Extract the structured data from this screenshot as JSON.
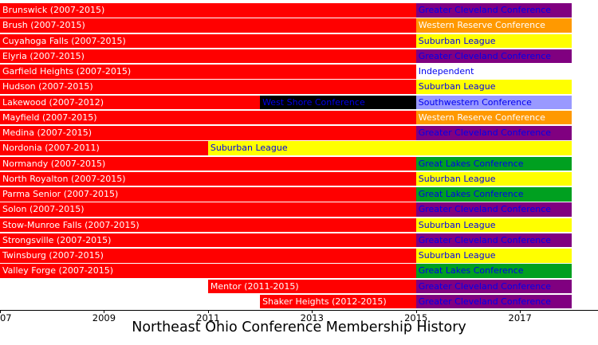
{
  "chart_data": {
    "type": "timeline",
    "title": "Northeast Ohio Conference Membership History",
    "x_axis": {
      "min": 2007,
      "max": 2018.5,
      "ticks": [
        2007,
        2009,
        2011,
        2013,
        2015,
        2017
      ],
      "tick_labels": [
        "2007",
        "2009",
        "2011",
        "2013",
        "2015",
        "2017"
      ]
    },
    "legend_position": "none",
    "grid": false,
    "colors": {
      "noc_red": "#ff0000",
      "gcc_purple": "#800080",
      "wrc_orange": "#ff9900",
      "suburban_yellow": "#ffff00",
      "independent_white": "#ffffff",
      "wsc_black": "#000000",
      "swc_lavender": "#9999ff",
      "glc_green": "#00a020",
      "school_text": "#ffffff",
      "conference_text": "#0000ee"
    },
    "rows": [
      {
        "school": "Brunswick",
        "segments": [
          {
            "label": "Brunswick (2007-2015)",
            "start": 2007,
            "end": 2015,
            "fill": "noc_red",
            "text": "school_text"
          },
          {
            "label": "Greater Cleveland Conference",
            "start": 2015,
            "end": 2018,
            "fill": "gcc_purple",
            "text": "conference_text"
          }
        ]
      },
      {
        "school": "Brush",
        "segments": [
          {
            "label": "Brush (2007-2015)",
            "start": 2007,
            "end": 2015,
            "fill": "noc_red",
            "text": "school_text"
          },
          {
            "label": "Western Reserve Conference",
            "start": 2015,
            "end": 2018,
            "fill": "wrc_orange",
            "text": "school_text"
          }
        ]
      },
      {
        "school": "Cuyahoga Falls",
        "segments": [
          {
            "label": "Cuyahoga Falls (2007-2015)",
            "start": 2007,
            "end": 2015,
            "fill": "noc_red",
            "text": "school_text"
          },
          {
            "label": "Suburban League",
            "start": 2015,
            "end": 2018,
            "fill": "suburban_yellow",
            "text": "conference_text"
          }
        ]
      },
      {
        "school": "Elyria",
        "segments": [
          {
            "label": "Elyria (2007-2015)",
            "start": 2007,
            "end": 2015,
            "fill": "noc_red",
            "text": "school_text"
          },
          {
            "label": "Greater Cleveland Conference",
            "start": 2015,
            "end": 2018,
            "fill": "gcc_purple",
            "text": "conference_text"
          }
        ]
      },
      {
        "school": "Garfield Heights",
        "segments": [
          {
            "label": "Garfield Heights (2007-2015)",
            "start": 2007,
            "end": 2015,
            "fill": "noc_red",
            "text": "school_text"
          },
          {
            "label": "Independent",
            "start": 2015,
            "end": 2018,
            "fill": "independent_white",
            "text": "conference_text"
          }
        ]
      },
      {
        "school": "Hudson",
        "segments": [
          {
            "label": "Hudson (2007-2015)",
            "start": 2007,
            "end": 2015,
            "fill": "noc_red",
            "text": "school_text"
          },
          {
            "label": "Suburban League",
            "start": 2015,
            "end": 2018,
            "fill": "suburban_yellow",
            "text": "conference_text"
          }
        ]
      },
      {
        "school": "Lakewood",
        "segments": [
          {
            "label": "Lakewood (2007-2012)",
            "start": 2007,
            "end": 2012,
            "fill": "noc_red",
            "text": "school_text"
          },
          {
            "label": "West Shore Conference",
            "start": 2012,
            "end": 2015,
            "fill": "wsc_black",
            "text": "conference_text"
          },
          {
            "label": "Southwestern Conference",
            "start": 2015,
            "end": 2018,
            "fill": "swc_lavender",
            "text": "conference_text"
          }
        ]
      },
      {
        "school": "Mayfield",
        "segments": [
          {
            "label": "Mayfield (2007-2015)",
            "start": 2007,
            "end": 2015,
            "fill": "noc_red",
            "text": "school_text"
          },
          {
            "label": "Western Reserve Conference",
            "start": 2015,
            "end": 2018,
            "fill": "wrc_orange",
            "text": "school_text"
          }
        ]
      },
      {
        "school": "Medina",
        "segments": [
          {
            "label": "Medina (2007-2015)",
            "start": 2007,
            "end": 2015,
            "fill": "noc_red",
            "text": "school_text"
          },
          {
            "label": "Greater Cleveland Conference",
            "start": 2015,
            "end": 2018,
            "fill": "gcc_purple",
            "text": "conference_text"
          }
        ]
      },
      {
        "school": "Nordonia",
        "segments": [
          {
            "label": "Nordonia (2007-2011)",
            "start": 2007,
            "end": 2011,
            "fill": "noc_red",
            "text": "school_text"
          },
          {
            "label": "Suburban League",
            "start": 2011,
            "end": 2018,
            "fill": "suburban_yellow",
            "text": "conference_text"
          }
        ]
      },
      {
        "school": "Normandy",
        "segments": [
          {
            "label": "Normandy (2007-2015)",
            "start": 2007,
            "end": 2015,
            "fill": "noc_red",
            "text": "school_text"
          },
          {
            "label": "Great Lakes Conference",
            "start": 2015,
            "end": 2018,
            "fill": "glc_green",
            "text": "conference_text"
          }
        ]
      },
      {
        "school": "North Royalton",
        "segments": [
          {
            "label": "North Royalton (2007-2015)",
            "start": 2007,
            "end": 2015,
            "fill": "noc_red",
            "text": "school_text"
          },
          {
            "label": "Suburban League",
            "start": 2015,
            "end": 2018,
            "fill": "suburban_yellow",
            "text": "conference_text"
          }
        ]
      },
      {
        "school": "Parma Senior",
        "segments": [
          {
            "label": "Parma Senior (2007-2015)",
            "start": 2007,
            "end": 2015,
            "fill": "noc_red",
            "text": "school_text"
          },
          {
            "label": "Great Lakes Conference",
            "start": 2015,
            "end": 2018,
            "fill": "glc_green",
            "text": "conference_text"
          }
        ]
      },
      {
        "school": "Solon",
        "segments": [
          {
            "label": "Solon (2007-2015)",
            "start": 2007,
            "end": 2015,
            "fill": "noc_red",
            "text": "school_text"
          },
          {
            "label": "Greater Cleveland Conference",
            "start": 2015,
            "end": 2018,
            "fill": "gcc_purple",
            "text": "conference_text"
          }
        ]
      },
      {
        "school": "Stow-Munroe Falls",
        "segments": [
          {
            "label": "Stow-Munroe Falls (2007-2015)",
            "start": 2007,
            "end": 2015,
            "fill": "noc_red",
            "text": "school_text"
          },
          {
            "label": "Suburban League",
            "start": 2015,
            "end": 2018,
            "fill": "suburban_yellow",
            "text": "conference_text"
          }
        ]
      },
      {
        "school": "Strongsville",
        "segments": [
          {
            "label": "Strongsville (2007-2015)",
            "start": 2007,
            "end": 2015,
            "fill": "noc_red",
            "text": "school_text"
          },
          {
            "label": "Greater Cleveland Conference",
            "start": 2015,
            "end": 2018,
            "fill": "gcc_purple",
            "text": "conference_text"
          }
        ]
      },
      {
        "school": "Twinsburg",
        "segments": [
          {
            "label": "Twinsburg (2007-2015)",
            "start": 2007,
            "end": 2015,
            "fill": "noc_red",
            "text": "school_text"
          },
          {
            "label": "Suburban League",
            "start": 2015,
            "end": 2018,
            "fill": "suburban_yellow",
            "text": "conference_text"
          }
        ]
      },
      {
        "school": "Valley Forge",
        "segments": [
          {
            "label": "Valley Forge (2007-2015)",
            "start": 2007,
            "end": 2015,
            "fill": "noc_red",
            "text": "school_text"
          },
          {
            "label": "Great Lakes Conference",
            "start": 2015,
            "end": 2018,
            "fill": "glc_green",
            "text": "conference_text"
          }
        ]
      },
      {
        "school": "Mentor",
        "segments": [
          {
            "label": "Mentor (2011-2015)",
            "start": 2011,
            "end": 2015,
            "fill": "noc_red",
            "text": "school_text"
          },
          {
            "label": "Greater Cleveland Conference",
            "start": 2015,
            "end": 2018,
            "fill": "gcc_purple",
            "text": "conference_text"
          }
        ]
      },
      {
        "school": "Shaker Heights",
        "segments": [
          {
            "label": "Shaker Heights (2012-2015)",
            "start": 2012,
            "end": 2015,
            "fill": "noc_red",
            "text": "school_text"
          },
          {
            "label": "Greater Cleveland Conference",
            "start": 2015,
            "end": 2018,
            "fill": "gcc_purple",
            "text": "conference_text"
          }
        ]
      }
    ]
  }
}
